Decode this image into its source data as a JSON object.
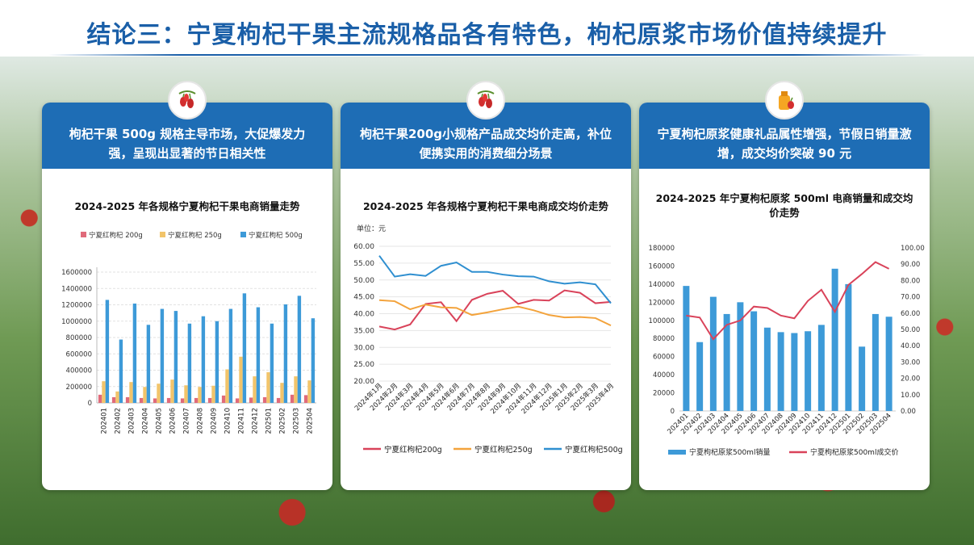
{
  "page": {
    "title": "结论三：宁夏枸杞干果主流规格品各有特色，枸杞原浆市场价值持续提升"
  },
  "cards": [
    {
      "headline": "枸杞干果 500g 规格主导市场，大促爆发力强，呈现出显著的节日相关性",
      "icon": "goji-berry-icon"
    },
    {
      "headline": "枸杞干果200g小规格产品成交均价走高，补位便携实用的消费细分场景",
      "icon": "goji-berry-icon"
    },
    {
      "headline": "宁夏枸杞原浆健康礼品属性增强，节假日销量激增，成交均价突破 90 元",
      "icon": "goji-juice-icon"
    }
  ],
  "chart_data": [
    {
      "type": "bar",
      "title": "2024-2025 年各规格宁夏枸杞干果电商销量走势",
      "categories": [
        "202401",
        "202402",
        "202403",
        "202404",
        "202405",
        "202406",
        "202407",
        "202408",
        "202409",
        "202410",
        "202411",
        "202412",
        "202501",
        "202502",
        "202503",
        "202504"
      ],
      "ylim": [
        0,
        1600000
      ],
      "yticks": [
        "0",
        "200000",
        "400000",
        "600000",
        "800000",
        "1000000",
        "1200000",
        "1400000",
        "1600000"
      ],
      "legend_position": "top",
      "series": [
        {
          "name": "宁夏红枸杞 200g",
          "color": "#e06a7a",
          "values": [
            100000,
            70000,
            70000,
            60000,
            55000,
            60000,
            55000,
            60000,
            60000,
            90000,
            55000,
            65000,
            70000,
            60000,
            100000,
            95000
          ]
        },
        {
          "name": "宁夏红枸杞 250g",
          "color": "#f2c46a",
          "values": [
            265000,
            140000,
            255000,
            195000,
            235000,
            285000,
            215000,
            195000,
            210000,
            410000,
            565000,
            325000,
            375000,
            245000,
            325000,
            275000
          ]
        },
        {
          "name": "宁夏红枸杞 500g",
          "color": "#3d9ad8",
          "values": [
            1260000,
            775000,
            1215000,
            955000,
            1150000,
            1125000,
            970000,
            1060000,
            1000000,
            1150000,
            1340000,
            1170000,
            970000,
            1205000,
            1310000,
            1035000
          ]
        }
      ]
    },
    {
      "type": "line",
      "title": "2024-2025 年各规格宁夏枸杞干果电商成交均价走势",
      "unit_label": "单位：元",
      "categories": [
        "2024年1月",
        "2024年2月",
        "2024年3月",
        "2024年4月",
        "2024年5月",
        "2024年6月",
        "2024年7月",
        "2024年8月",
        "2024年9月",
        "2024年10月",
        "2024年11月",
        "2024年12月",
        "2025年1月",
        "2025年2月",
        "2025年3月",
        "2025年4月"
      ],
      "ylim": [
        20,
        60
      ],
      "yticks": [
        "20.00",
        "25.00",
        "30.00",
        "35.00",
        "40.00",
        "45.00",
        "50.00",
        "55.00",
        "60.00"
      ],
      "legend_position": "bottom",
      "series": [
        {
          "name": "宁夏红枸杞200g",
          "color": "#d9435a",
          "values": [
            36.2,
            35.3,
            36.8,
            42.9,
            43.4,
            37.8,
            44.1,
            45.9,
            46.8,
            42.9,
            44.1,
            43.9,
            46.9,
            46.2,
            43.1,
            43.5
          ]
        },
        {
          "name": "宁夏红枸杞250g",
          "color": "#f3a33c",
          "values": [
            44.0,
            43.7,
            41.3,
            42.7,
            41.9,
            41.7,
            39.6,
            40.4,
            41.3,
            42.1,
            41.0,
            39.6,
            38.9,
            39.0,
            38.7,
            36.5
          ]
        },
        {
          "name": "宁夏红枸杞500g",
          "color": "#2f8fd0",
          "values": [
            57.2,
            51.0,
            51.7,
            51.2,
            54.2,
            55.2,
            52.4,
            52.4,
            51.6,
            51.1,
            51.0,
            49.6,
            48.9,
            49.3,
            48.7,
            43.1
          ]
        }
      ]
    },
    {
      "type": "bar+line",
      "title": "2024-2025 年宁夏枸杞原浆 500ml 电商销量和成交均价走势",
      "categories": [
        "202401",
        "202402",
        "202403",
        "202404",
        "202405",
        "202406",
        "202407",
        "202408",
        "202409",
        "202410",
        "202411",
        "202412",
        "202501",
        "202502",
        "202503",
        "202504"
      ],
      "ylim_left": [
        0,
        180000
      ],
      "yticks_left": [
        "0",
        "20000",
        "40000",
        "60000",
        "80000",
        "100000",
        "120000",
        "140000",
        "160000",
        "180000"
      ],
      "ylim_right": [
        0,
        100
      ],
      "yticks_right": [
        "0.00",
        "10.00",
        "20.00",
        "30.00",
        "40.00",
        "50.00",
        "60.00",
        "70.00",
        "80.00",
        "90.00",
        "100.00"
      ],
      "legend_position": "bottom",
      "series": [
        {
          "name": "宁夏枸杞原浆500ml销量",
          "kind": "bar",
          "axis": "left",
          "color": "#3d9ad8",
          "values": [
            138000,
            76000,
            126000,
            107000,
            120000,
            110000,
            92000,
            87000,
            86000,
            88000,
            95000,
            157000,
            140000,
            71000,
            107000,
            104000
          ]
        },
        {
          "name": "宁夏枸杞原浆500ml成交价",
          "kind": "line",
          "axis": "right",
          "color": "#d9435a",
          "values": [
            58.5,
            57.3,
            44.0,
            52.8,
            55.5,
            64.0,
            63.2,
            58.5,
            56.8,
            67.5,
            74.3,
            60.8,
            77.3,
            84.0,
            91.3,
            87.2
          ]
        }
      ]
    }
  ]
}
